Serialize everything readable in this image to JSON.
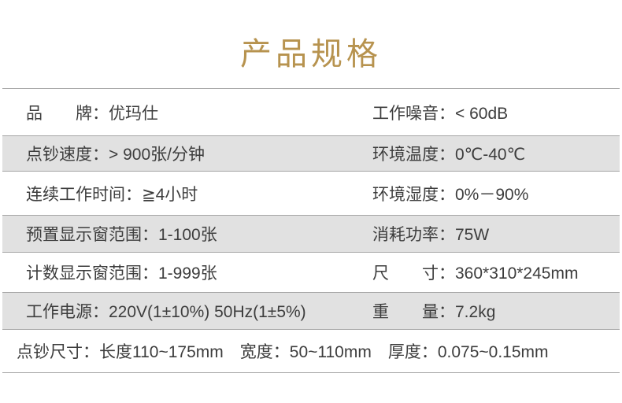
{
  "header": {
    "title": "产品规格",
    "title_color": "#B7934F"
  },
  "spec_table": {
    "colors": {
      "shaded_row_bg": "#E1E1E1",
      "border_line": "#A5A5A5",
      "text": "#3D3D3D"
    },
    "rows": [
      {
        "left": "品　　牌：优玛仕",
        "right": "工作噪音：< 60dB",
        "shaded": false
      },
      {
        "left": "点钞速度：> 900张/分钟",
        "right": "环境温度：0℃-40℃",
        "shaded": true
      },
      {
        "left": "连续工作时间：≧4小时",
        "right": "环境湿度：0%－90%",
        "shaded": false
      },
      {
        "left": "预置显示窗范围：1-100张",
        "right": "消耗功率：75W",
        "shaded": true
      },
      {
        "left": "计数显示窗范围：1-999张",
        "right": "尺　　寸：360*310*245mm",
        "shaded": false
      },
      {
        "left": "工作电源：220V(1±10%) 50Hz(1±5%)",
        "right": "重　　量：7.2kg",
        "shaded": true
      },
      {
        "left": "点钞尺寸：长度110~175mm　宽度：50~110mm　厚度：0.075~0.15mm",
        "right": "",
        "shaded": false
      }
    ]
  }
}
